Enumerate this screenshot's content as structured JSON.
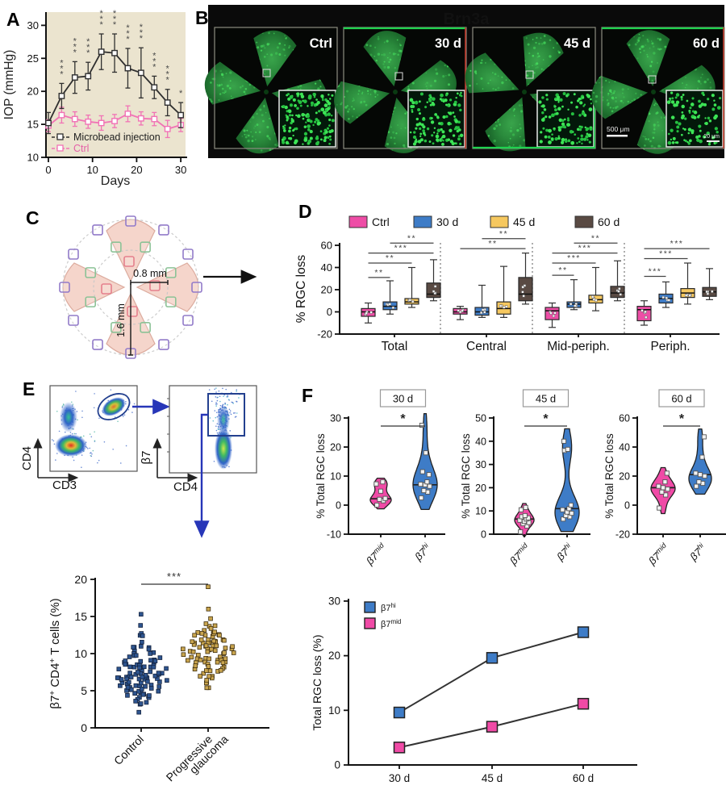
{
  "panel_a": {
    "letter": "A",
    "ylabel": "IOP (mmHg)",
    "xlabel": "Days",
    "plot_bg": "#ebe4cf",
    "xticks": [
      0,
      10,
      20,
      30
    ],
    "yticks": [
      10,
      15,
      20,
      25,
      30
    ]
  },
  "panel_b": {
    "letter": "B",
    "title": "Brn3a",
    "title_color": "#2ee858",
    "images": [
      {
        "label": "Ctrl"
      },
      {
        "label": "30 d"
      },
      {
        "label": "45 d"
      },
      {
        "label": "60 d"
      }
    ],
    "scalebar_main": "500 μm",
    "scalebar_inset": "20 μm"
  },
  "panel_c": {
    "letter": "C",
    "dim_h": "0.8 mm",
    "dim_v": "1.6 mm"
  },
  "panel_d": {
    "letter": "D"
  },
  "panel_e": {
    "letter": "E",
    "flow1": {
      "xlabel": "CD3",
      "ylabel": "CD4"
    },
    "flow2": {
      "xlabel": "CD4",
      "ylabel": "β7"
    },
    "scatter_ylabel": {
      "p1": "β7",
      "s1": "+",
      "p2": " CD4",
      "s2": "+",
      "p3": " T cells (%)"
    },
    "control_label": "Control",
    "glaucoma_label_lines": [
      "Progressive",
      "glaucoma"
    ],
    "sig": "***"
  },
  "panel_f": {
    "letter": "F",
    "ylabel_violin": "% Total RGC loss"
  },
  "chart_data": [
    {
      "id": "iop_over_time",
      "type": "line",
      "title": "",
      "xlabel": "Days",
      "ylabel": "IOP (mmHg)",
      "x": [
        0,
        3,
        6,
        9,
        12,
        15,
        18,
        21,
        24,
        27,
        30
      ],
      "ylim": [
        10,
        32
      ],
      "series": [
        {
          "name": "Microbead injection",
          "color": "#2f2f2f",
          "values": [
            15.2,
            19.3,
            22.1,
            22.3,
            26.0,
            25.8,
            23.5,
            22.8,
            20.6,
            18.3,
            16.4
          ],
          "err": [
            1.6,
            1.9,
            2.4,
            2.1,
            2.7,
            2.9,
            3.0,
            3.8,
            1.7,
            2.0,
            1.9
          ]
        },
        {
          "name": "Ctrl",
          "color": "#f173b5",
          "values": [
            14.8,
            16.4,
            15.8,
            15.4,
            15.2,
            15.5,
            16.6,
            15.9,
            15.8,
            14.3,
            14.9
          ],
          "err": [
            0.9,
            1.2,
            1.1,
            1.0,
            1.1,
            1.0,
            1.2,
            1.0,
            1.0,
            1.3,
            1.0
          ]
        }
      ],
      "sig": [
        {
          "day": 3,
          "label": "***"
        },
        {
          "day": 6,
          "label": "***"
        },
        {
          "day": 9,
          "label": "***"
        },
        {
          "day": 12,
          "label": "***"
        },
        {
          "day": 15,
          "label": "***"
        },
        {
          "day": 18,
          "label": "***"
        },
        {
          "day": 21,
          "label": "***"
        },
        {
          "day": 24,
          "label": "***"
        },
        {
          "day": 27,
          "label": "***"
        },
        {
          "day": 30,
          "label": "*"
        }
      ]
    },
    {
      "id": "rgc_loss_box",
      "type": "box",
      "ylabel": "% RGC loss",
      "ylim": [
        -20,
        60
      ],
      "yticks": [
        -20,
        0,
        20,
        40,
        60
      ],
      "series_names": [
        "Ctrl",
        "30 d",
        "45 d",
        "60 d"
      ],
      "series_colors": [
        "#ee4da6",
        "#3e7cc7",
        "#f6c85f",
        "#594a43"
      ],
      "categories": [
        "Total",
        "Central",
        "Mid-periph.",
        "Periph."
      ],
      "boxes": [
        [
          [
            -10,
            -4,
            0,
            3,
            8
          ],
          [
            -2,
            2,
            5,
            9,
            28
          ],
          [
            4,
            7,
            9,
            12,
            40
          ],
          [
            10,
            13,
            16,
            26,
            47
          ]
        ],
        [
          [
            -7,
            -2,
            0,
            3,
            5
          ],
          [
            -5,
            -3,
            0,
            4,
            24
          ],
          [
            -5,
            -2,
            3,
            9,
            41
          ],
          [
            7,
            10,
            16,
            31,
            53
          ]
        ],
        [
          [
            -14,
            -7,
            1,
            4,
            8
          ],
          [
            2,
            4,
            7,
            9,
            29
          ],
          [
            1,
            8,
            11,
            15,
            40
          ],
          [
            10,
            13,
            17,
            23,
            46
          ]
        ],
        [
          [
            -12,
            -8,
            2,
            5,
            10
          ],
          [
            4,
            8,
            12,
            16,
            27
          ],
          [
            7,
            13,
            17,
            21,
            44
          ],
          [
            11,
            14,
            18,
            22,
            39
          ]
        ]
      ],
      "sig": [
        [
          [
            0,
            1,
            "**",
            31
          ],
          [
            0,
            2,
            "**",
            44
          ],
          [
            0,
            3,
            "***",
            53
          ],
          [
            1,
            3,
            "**",
            62
          ]
        ],
        [
          [
            0,
            3,
            "**",
            57
          ],
          [
            1,
            3,
            "**",
            66
          ]
        ],
        [
          [
            0,
            1,
            "**",
            33
          ],
          [
            0,
            2,
            "***",
            44
          ],
          [
            0,
            3,
            "***",
            53
          ],
          [
            1,
            3,
            "**",
            62
          ]
        ],
        [
          [
            0,
            1,
            "***",
            32
          ],
          [
            0,
            2,
            "***",
            48
          ],
          [
            0,
            3,
            "***",
            57
          ]
        ]
      ]
    },
    {
      "id": "b7_cd4_t_cells",
      "type": "scatter",
      "ylabel": "β7+ CD4+ T cells (%)",
      "ylim": [
        0,
        20
      ],
      "yticks": [
        0,
        5,
        10,
        15,
        20
      ],
      "sig": "***",
      "groups": [
        {
          "label": "Control",
          "n": 100,
          "mean": 7.3,
          "sd": 2.1,
          "min": 2.1,
          "max": 15.3,
          "extra_points": [
            12.4,
            13.8,
            15.3,
            2.1
          ],
          "color": "#2e5590",
          "edge": "#14233f"
        },
        {
          "label": "Progressive glaucoma",
          "n": 85,
          "mean": 10.3,
          "sd": 1.9,
          "min": 5.4,
          "max": 19.0,
          "extra_points": [
            16.0,
            19.0,
            5.4
          ],
          "color": "#c9a54e",
          "edge": "#403010"
        }
      ]
    },
    {
      "id": "violin_30d",
      "type": "violin",
      "title": "30 d",
      "sig": "*",
      "ylabel": "% Total RGC loss",
      "ylim": [
        -10,
        30
      ],
      "yticks": [
        -10,
        0,
        10,
        20,
        30
      ],
      "groups": [
        {
          "name_base": "β7",
          "name_sup": "mid",
          "color": "#f04aa6",
          "median": 2.2,
          "points": [
            0,
            1.5,
            2,
            2.3,
            4.8,
            7.3,
            8
          ]
        },
        {
          "name_base": "β7",
          "name_sup": "hi",
          "color": "#3e7cc7",
          "median": 7,
          "points": [
            2.5,
            4.5,
            5,
            6.5,
            7,
            7.2,
            8,
            10.5,
            11.5,
            18,
            27.5
          ]
        }
      ]
    },
    {
      "id": "violin_45d",
      "type": "violin",
      "title": "45 d",
      "sig": "*",
      "ylabel": "% Total RGC loss",
      "ylim": [
        0,
        50
      ],
      "yticks": [
        0,
        10,
        20,
        30,
        40,
        50
      ],
      "groups": [
        {
          "name_base": "β7",
          "name_sup": "mid",
          "color": "#f04aa6",
          "median": 6.5,
          "points": [
            1,
            3.5,
            4.5,
            5,
            5.5,
            6,
            6.5,
            7,
            7.5,
            8,
            10.5,
            11.5
          ]
        },
        {
          "name_base": "β7",
          "name_sup": "hi",
          "color": "#3e7cc7",
          "median": 11,
          "points": [
            6.5,
            7.5,
            8,
            9,
            9.5,
            10.5,
            11,
            12.5,
            36,
            36.5,
            40
          ]
        }
      ]
    },
    {
      "id": "violin_60d",
      "type": "violin",
      "title": "60 d",
      "sig": "*",
      "ylabel": "% Total RGC loss",
      "ylim": [
        -20,
        60
      ],
      "yticks": [
        -20,
        0,
        20,
        40,
        60
      ],
      "groups": [
        {
          "name_base": "β7",
          "name_sup": "mid",
          "color": "#f04aa6",
          "median": 12,
          "points": [
            -2,
            7,
            9,
            11,
            12,
            13,
            16,
            22
          ]
        },
        {
          "name_base": "β7",
          "name_sup": "hi",
          "color": "#3e7cc7",
          "median": 21,
          "points": [
            13,
            15,
            16,
            20,
            21,
            22,
            33,
            47
          ]
        }
      ]
    },
    {
      "id": "total_rgc_loss_line",
      "type": "line",
      "ylabel": "Total RGC loss (%)",
      "ylim": [
        0,
        30
      ],
      "yticks": [
        0,
        10,
        20,
        30
      ],
      "categories": [
        "30 d",
        "45 d",
        "60 d"
      ],
      "series": [
        {
          "name_base": "β7",
          "name_sup": "hi",
          "color": "#3e7cc7",
          "values": [
            9.6,
            19.6,
            24.3
          ]
        },
        {
          "name_base": "β7",
          "name_sup": "mid",
          "color": "#f04aa6",
          "values": [
            3.2,
            7.0,
            11.2
          ]
        }
      ]
    }
  ]
}
